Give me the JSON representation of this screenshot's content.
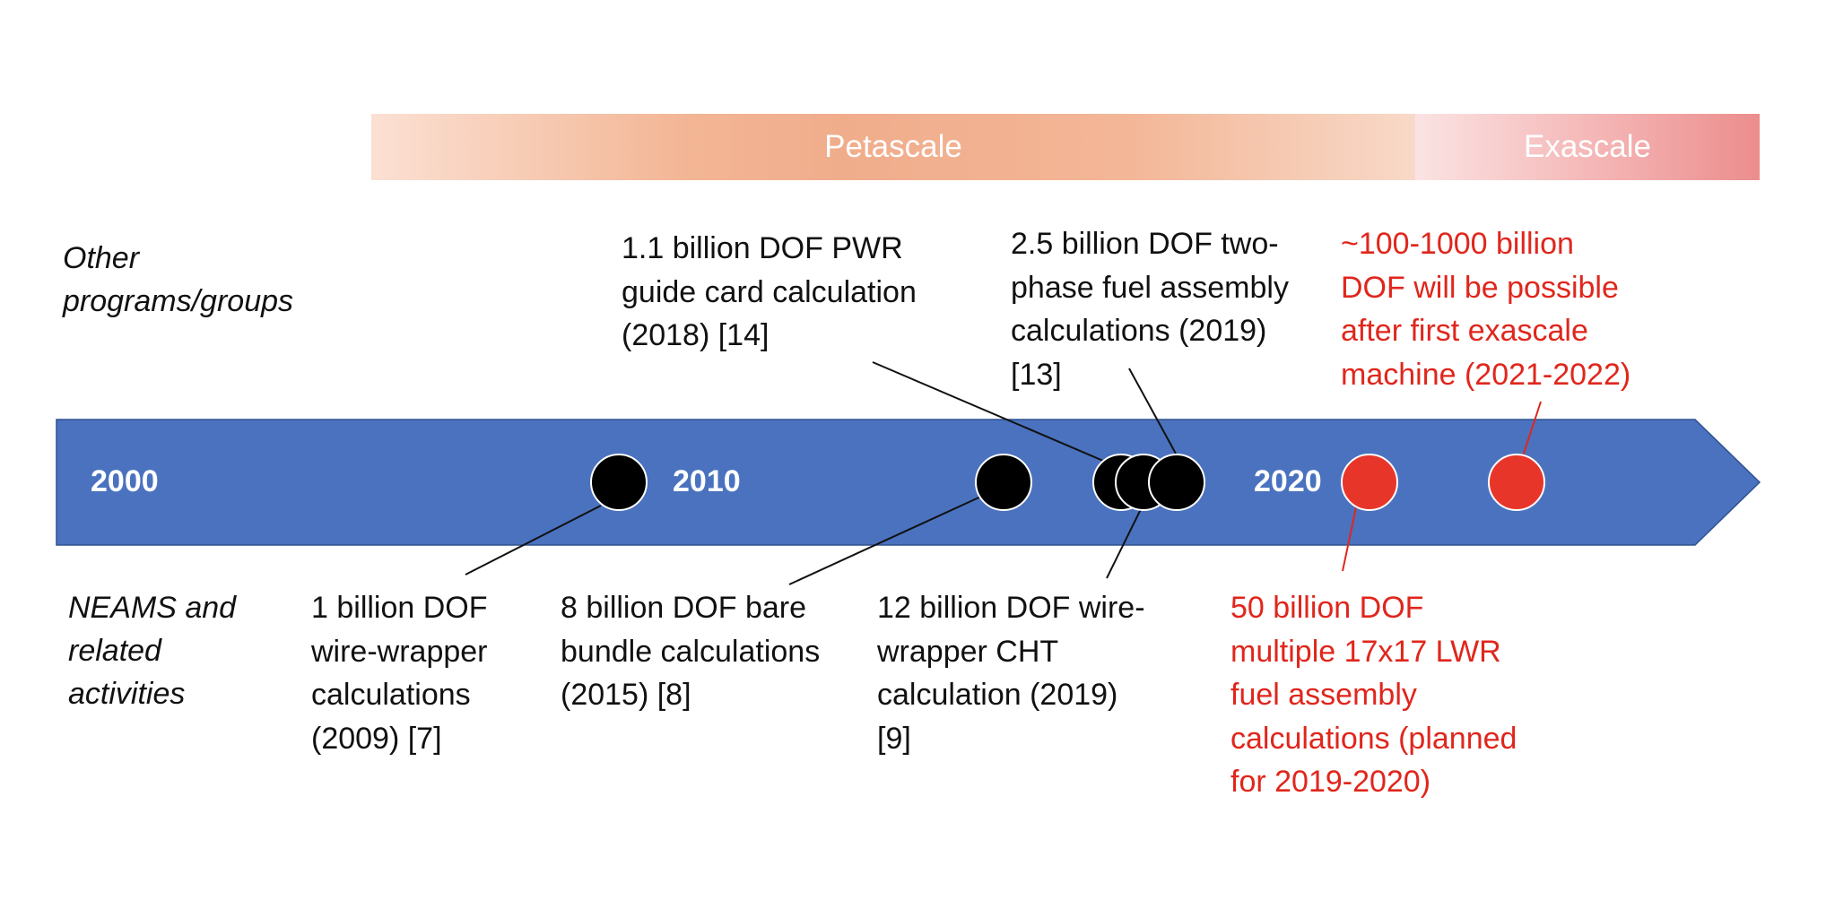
{
  "banners": {
    "petascale": "Petascale",
    "exascale": "Exascale"
  },
  "side_labels": {
    "other": "Other\nprograms/groups",
    "neams": "NEAMS and\nrelated\nactivities"
  },
  "years": [
    "2000",
    "2010",
    "2020"
  ],
  "annotations": {
    "wire_wrapper_2009": "1 billion DOF\nwire-wrapper\ncalculations\n(2009) [7]",
    "bare_bundle_2015": "8 billion DOF bare\nbundle calculations\n(2015) [8]",
    "cht_2019": "12 billion DOF wire-\nwrapper CHT\ncalculation (2019)\n[9]",
    "planned_2019_2020": "50 billion DOF\nmultiple 17x17 LWR\nfuel assembly\ncalculations (planned\nfor 2019-2020)",
    "pwr_2018": "1.1 billion DOF PWR\nguide card calculation\n(2018) [14]",
    "two_phase_2019": "2.5 billion DOF two-\nphase fuel assembly\ncalculations (2019)\n[13]",
    "exascale_future": "~100-1000 billion\nDOF will be possible\nafter first exascale\nmachine (2021-2022)"
  },
  "colors": {
    "arrow": "#4a72bf",
    "past_marker": "#000000",
    "future_marker": "#e8352a",
    "future_text": "#e0261c",
    "connector": "#111111"
  }
}
